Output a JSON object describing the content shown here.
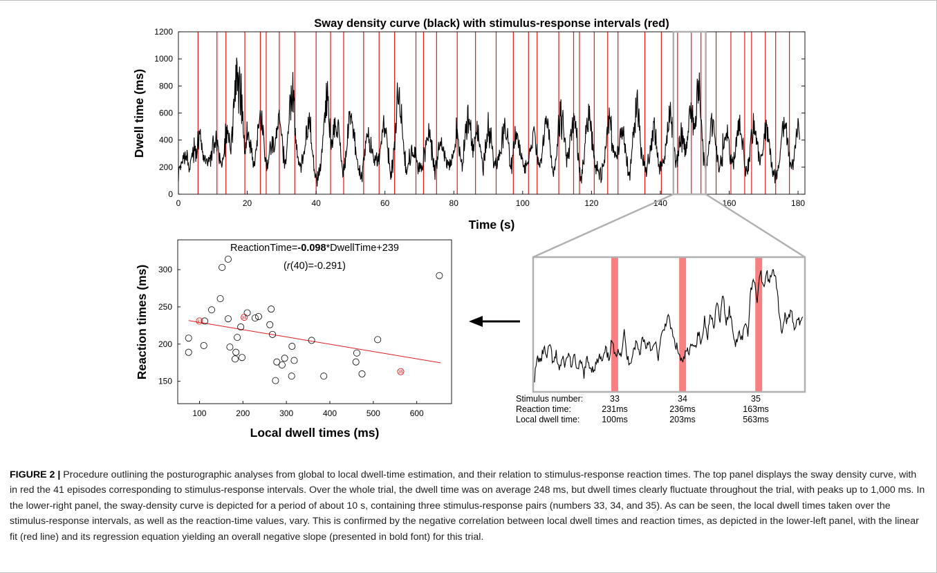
{
  "chart_data": [
    {
      "type": "line",
      "title": "Sway density curve (black) with stimulus-response intervals (red)",
      "xlabel": "Time (s)",
      "ylabel": "Dwell time (ms)",
      "xlim": [
        0,
        182
      ],
      "ylim": [
        0,
        1200
      ],
      "xticks": [
        0,
        20,
        40,
        60,
        80,
        100,
        120,
        140,
        160,
        180
      ],
      "yticks": [
        0,
        200,
        400,
        600,
        800,
        1000,
        1200
      ],
      "series": [
        {
          "color": "#000000",
          "peaks": [
            {
              "x": 2,
              "y": 220
            },
            {
              "x": 5,
              "y": 430
            },
            {
              "x": 6,
              "y": 510
            },
            {
              "x": 11,
              "y": 560
            },
            {
              "x": 14,
              "y": 520
            },
            {
              "x": 17,
              "y": 1050
            },
            {
              "x": 18,
              "y": 940
            },
            {
              "x": 20,
              "y": 580
            },
            {
              "x": 24,
              "y": 620
            },
            {
              "x": 27,
              "y": 460
            },
            {
              "x": 29,
              "y": 600
            },
            {
              "x": 33,
              "y": 980
            },
            {
              "x": 38,
              "y": 560
            },
            {
              "x": 43,
              "y": 810
            },
            {
              "x": 46,
              "y": 720
            },
            {
              "x": 50,
              "y": 660
            },
            {
              "x": 55,
              "y": 520
            },
            {
              "x": 60,
              "y": 610
            },
            {
              "x": 64,
              "y": 800
            },
            {
              "x": 68,
              "y": 450
            },
            {
              "x": 73,
              "y": 480
            },
            {
              "x": 76,
              "y": 490
            },
            {
              "x": 81,
              "y": 520
            },
            {
              "x": 84,
              "y": 650
            },
            {
              "x": 87,
              "y": 520
            },
            {
              "x": 90,
              "y": 600
            },
            {
              "x": 95,
              "y": 620
            },
            {
              "x": 98,
              "y": 500
            },
            {
              "x": 103,
              "y": 590
            },
            {
              "x": 107,
              "y": 540
            },
            {
              "x": 111,
              "y": 760
            },
            {
              "x": 115,
              "y": 590
            },
            {
              "x": 119,
              "y": 640
            },
            {
              "x": 125,
              "y": 700
            },
            {
              "x": 129,
              "y": 550
            },
            {
              "x": 133,
              "y": 750
            },
            {
              "x": 138,
              "y": 620
            },
            {
              "x": 143,
              "y": 680
            },
            {
              "x": 146,
              "y": 540
            },
            {
              "x": 149,
              "y": 700
            },
            {
              "x": 151,
              "y": 1040
            },
            {
              "x": 155,
              "y": 540
            },
            {
              "x": 159,
              "y": 600
            },
            {
              "x": 163,
              "y": 520
            },
            {
              "x": 167,
              "y": 640
            },
            {
              "x": 171,
              "y": 560
            },
            {
              "x": 176,
              "y": 540
            },
            {
              "x": 180,
              "y": 590
            }
          ]
        }
      ],
      "intervals_x": [
        5.7,
        11.2,
        13.8,
        19.3,
        23.8,
        25.5,
        29.3,
        33.8,
        40,
        44.2,
        48,
        53.8,
        58.3,
        62.8,
        69,
        71.2,
        75,
        81,
        86.3,
        92.3,
        97.3,
        101.7,
        104.2,
        110.5,
        114.8,
        116.5,
        120.8,
        124.7,
        127.7,
        135.5,
        140.3,
        145,
        149,
        151.8,
        156.2,
        160.5,
        164.5,
        166.5,
        170.5,
        173.5,
        177.5
      ],
      "interval_color": "#e0191c",
      "zoom_box": {
        "x_start": 143.8,
        "x_end": 153.2
      }
    },
    {
      "type": "scatter",
      "xlabel": "Local dwell times (ms)",
      "ylabel": "Reaction times (ms)",
      "xlim": [
        50,
        680
      ],
      "ylim": [
        120,
        340
      ],
      "xticks": [
        100,
        200,
        300,
        400,
        500,
        600
      ],
      "yticks": [
        150,
        200,
        250,
        300
      ],
      "equation": {
        "prefix": "ReactionTime=",
        "slope": "-0.098",
        "suffix": "*DwellTime+239"
      },
      "correlation": {
        "open": "(",
        "r": "r",
        "rest": "(40)=-0.291)"
      },
      "fit": {
        "slope": -0.098,
        "intercept": 239,
        "color": "#e0191c"
      },
      "points": [
        {
          "x": 75,
          "y": 208
        },
        {
          "x": 75,
          "y": 189
        },
        {
          "x": 110,
          "y": 198
        },
        {
          "x": 112,
          "y": 231
        },
        {
          "x": 128,
          "y": 246
        },
        {
          "x": 148,
          "y": 261
        },
        {
          "x": 152,
          "y": 303
        },
        {
          "x": 166,
          "y": 314
        },
        {
          "x": 166,
          "y": 234
        },
        {
          "x": 170,
          "y": 196
        },
        {
          "x": 182,
          "y": 180
        },
        {
          "x": 184,
          "y": 189
        },
        {
          "x": 187,
          "y": 209
        },
        {
          "x": 195,
          "y": 223
        },
        {
          "x": 198,
          "y": 182
        },
        {
          "x": 210,
          "y": 242
        },
        {
          "x": 228,
          "y": 235
        },
        {
          "x": 236,
          "y": 237
        },
        {
          "x": 262,
          "y": 226
        },
        {
          "x": 265,
          "y": 247
        },
        {
          "x": 268,
          "y": 213
        },
        {
          "x": 275,
          "y": 151
        },
        {
          "x": 278,
          "y": 176
        },
        {
          "x": 290,
          "y": 172
        },
        {
          "x": 296,
          "y": 181
        },
        {
          "x": 312,
          "y": 157
        },
        {
          "x": 313,
          "y": 197
        },
        {
          "x": 318,
          "y": 178
        },
        {
          "x": 358,
          "y": 205
        },
        {
          "x": 386,
          "y": 157
        },
        {
          "x": 460,
          "y": 176
        },
        {
          "x": 462,
          "y": 188
        },
        {
          "x": 474,
          "y": 160
        },
        {
          "x": 510,
          "y": 206
        },
        {
          "x": 652,
          "y": 292
        }
      ],
      "highlighted": [
        {
          "label": "33",
          "x": 100,
          "y": 231
        },
        {
          "label": "34",
          "x": 203,
          "y": 236
        },
        {
          "label": "35",
          "x": 563,
          "y": 163
        }
      ]
    },
    {
      "type": "line",
      "series": [
        {
          "color": "#000000",
          "y_fraction": [
            0.05,
            0.22,
            0.18,
            0.3,
            0.2,
            0.34,
            0.15,
            0.24,
            0.12,
            0.2,
            0.16,
            0.26,
            0.14,
            0.22,
            0.1,
            0.18,
            0.08,
            0.2,
            0.14,
            0.12,
            0.16,
            0.22,
            0.18,
            0.28,
            0.2,
            0.36,
            0.22,
            0.3,
            0.24,
            0.42,
            0.2,
            0.18,
            0.28,
            0.34,
            0.24,
            0.4,
            0.3,
            0.36,
            0.26,
            0.34,
            0.22,
            0.38,
            0.46,
            0.56,
            0.48,
            0.36,
            0.3,
            0.22,
            0.16,
            0.28,
            0.24,
            0.36,
            0.3,
            0.42,
            0.32,
            0.54,
            0.4,
            0.6,
            0.44,
            0.68,
            0.52,
            0.74,
            0.5,
            0.62,
            0.46,
            0.32,
            0.44,
            0.36,
            0.52,
            0.4,
            0.8,
            0.86,
            0.7,
            0.94,
            0.78,
            0.92,
            0.84,
            0.96,
            0.88,
            0.62,
            0.42,
            0.56,
            0.5,
            0.64,
            0.44,
            0.56,
            0.48,
            0.58
          ]
        }
      ],
      "stimulus_bands_fraction": [
        0.3,
        0.55,
        0.83
      ],
      "band_color": "#f98080"
    }
  ],
  "stimulus_table": {
    "row_labels": [
      "Stimulus number:",
      "Reaction time:",
      "Local dwell time:"
    ],
    "columns": [
      {
        "number": "33",
        "reaction": "231ms",
        "dwell": "100ms"
      },
      {
        "number": "34",
        "reaction": "236ms",
        "dwell": "203ms"
      },
      {
        "number": "35",
        "reaction": "163ms",
        "dwell": "563ms"
      }
    ]
  },
  "caption": {
    "label": "FIGURE 2 |",
    "text": " Procedure outlining the posturographic analyses from global to local dwell-time estimation, and their relation to stimulus-response reaction times. The top panel displays the sway density curve, with in red the 41 episodes corresponding to stimulus-response intervals. Over the whole trial, the dwell time was on average 248 ms, but dwell times clearly fluctuate throughout the trial, with peaks up to 1,000 ms. In the lower-right panel, the sway-density curve is depicted for a period of about 10 s, containing three stimulus-response pairs (numbers 33, 34, and 35). As can be seen, the local dwell times taken over the stimulus-response intervals, as well as the reaction-time values, vary. This is confirmed by the negative correlation between local dwell times and reaction times, as depicted in the lower-left panel, with the linear fit (red line) and its regression equation yielding an overall negative slope (presented in bold font) for this trial."
  }
}
